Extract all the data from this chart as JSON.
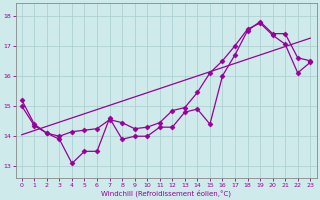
{
  "xlabel": "Windchill (Refroidissement éolien,°C)",
  "background_color": "#ceeaea",
  "line_color": "#990099",
  "grid_color": "#aacccc",
  "xlim": [
    -0.5,
    23.5
  ],
  "ylim": [
    12.6,
    18.4
  ],
  "yticks": [
    13,
    14,
    15,
    16,
    17,
    18
  ],
  "xticks": [
    0,
    1,
    2,
    3,
    4,
    5,
    6,
    7,
    8,
    9,
    10,
    11,
    12,
    13,
    14,
    15,
    16,
    17,
    18,
    19,
    20,
    21,
    22,
    23
  ],
  "series1_x": [
    0,
    1,
    2,
    3,
    4,
    5,
    6,
    7,
    8,
    9,
    10,
    11,
    12,
    13,
    14,
    15,
    16,
    17,
    18,
    19,
    20,
    21,
    22,
    23
  ],
  "series1_y": [
    15.2,
    14.4,
    14.1,
    13.9,
    13.1,
    13.5,
    13.5,
    14.6,
    13.9,
    14.0,
    14.0,
    14.3,
    14.3,
    14.8,
    14.9,
    14.4,
    16.0,
    16.7,
    17.5,
    17.8,
    17.4,
    17.4,
    16.6,
    16.5
  ],
  "series2_x": [
    0,
    1,
    2,
    3,
    4,
    5,
    6,
    7,
    8,
    9,
    10,
    11,
    12,
    13,
    14,
    15,
    16,
    17,
    18,
    19,
    20,
    21,
    22,
    23
  ],
  "series2_y": [
    15.0,
    14.35,
    14.1,
    14.0,
    14.15,
    14.2,
    14.25,
    14.55,
    14.45,
    14.25,
    14.3,
    14.45,
    14.85,
    14.95,
    15.45,
    16.1,
    16.5,
    17.0,
    17.55,
    17.75,
    17.35,
    17.05,
    16.1,
    16.45
  ],
  "series3_x": [
    0,
    23
  ],
  "series3_y": [
    14.05,
    17.25
  ],
  "marker": "D",
  "marker_size": 2.5,
  "line_width": 0.9
}
